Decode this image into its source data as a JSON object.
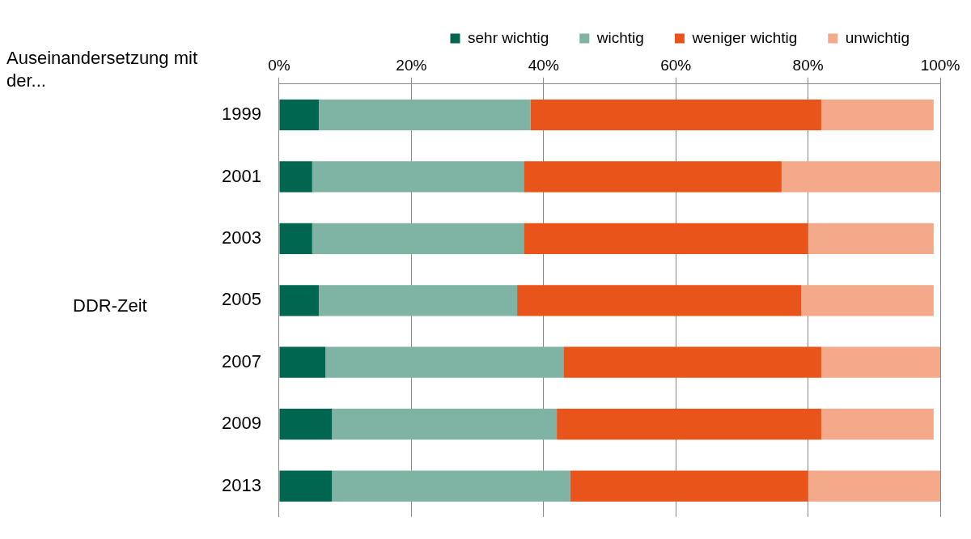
{
  "chart_data": {
    "type": "bar",
    "orientation": "horizontal",
    "stacked": true,
    "categories": [
      "1999",
      "2001",
      "2003",
      "2005",
      "2007",
      "2009",
      "2013"
    ],
    "series": [
      {
        "name": "sehr wichtig",
        "color": "#00664f",
        "values": [
          6,
          5,
          5,
          6,
          7,
          8,
          8
        ]
      },
      {
        "name": "wichtig",
        "color": "#7fb3a4",
        "values": [
          32,
          32,
          32,
          30,
          36,
          34,
          36
        ]
      },
      {
        "name": "weniger wichtig",
        "color": "#e8541a",
        "values": [
          44,
          39,
          43,
          43,
          39,
          40,
          36
        ]
      },
      {
        "name": "unwichtig",
        "color": "#f4a98a",
        "values": [
          17,
          24,
          19,
          20,
          18,
          17,
          20
        ]
      }
    ],
    "xlim": [
      0,
      100
    ],
    "xticks": [
      {
        "value": 0,
        "label": "0%"
      },
      {
        "value": 20,
        "label": "20%"
      },
      {
        "value": 40,
        "label": "40%"
      },
      {
        "value": 60,
        "label": "60%"
      },
      {
        "value": 80,
        "label": "80%"
      },
      {
        "value": 100,
        "label": "100%"
      }
    ],
    "grid": "x",
    "legend": "top",
    "annotations": [
      "Auseinandersetzung mit der...",
      "DDR-Zeit"
    ]
  }
}
